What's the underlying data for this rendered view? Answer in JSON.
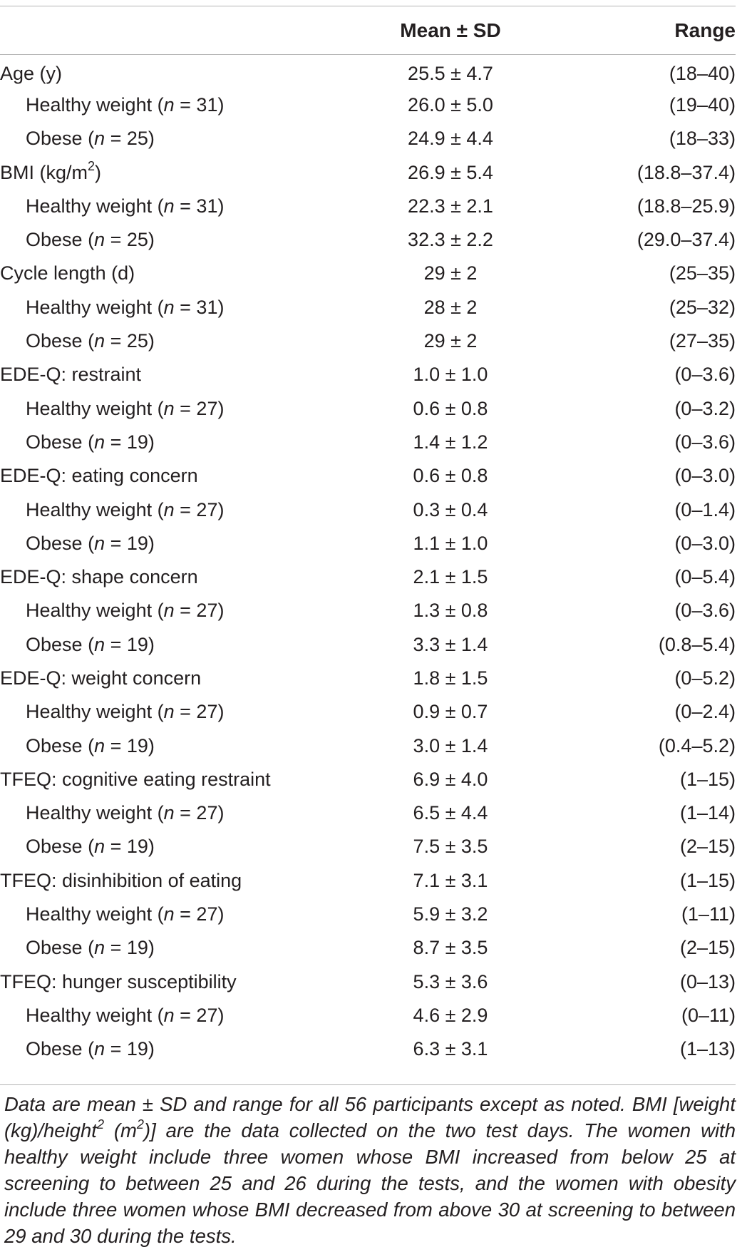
{
  "header": {
    "label": "",
    "mean": "Mean ± SD",
    "range": "Range"
  },
  "rows": [
    {
      "label": "Age (y)",
      "n": "",
      "mean": "25.5 ± 4.7",
      "range": "(18–40)"
    },
    {
      "label": "Healthy weight",
      "n": "31",
      "mean": "26.0 ± 5.0",
      "range": "(19–40)"
    },
    {
      "label": "Obese",
      "n": "25",
      "mean": "24.9 ± 4.4",
      "range": "(18–33)"
    },
    {
      "label": "BMI (kg/m",
      "sup": "2",
      "label_end": ")",
      "n": "",
      "mean": "26.9 ± 5.4",
      "range": "(18.8–37.4)"
    },
    {
      "label": "Healthy weight",
      "n": "31",
      "mean": "22.3 ± 2.1",
      "range": "(18.8–25.9)"
    },
    {
      "label": "Obese",
      "n": "25",
      "mean": "32.3 ± 2.2",
      "range": "(29.0–37.4)"
    },
    {
      "label": "Cycle length (d)",
      "n": "",
      "mean": "29 ± 2",
      "range": "(25–35)"
    },
    {
      "label": "Healthy weight",
      "n": "31",
      "mean": "28 ± 2",
      "range": "(25–32)"
    },
    {
      "label": "Obese",
      "n": "25",
      "mean": "29 ± 2",
      "range": "(27–35)"
    },
    {
      "label": "EDE-Q: restraint",
      "n": "",
      "mean": "1.0 ± 1.0",
      "range": "(0–3.6)"
    },
    {
      "label": "Healthy weight",
      "n": "27",
      "mean": "0.6 ± 0.8",
      "range": "(0–3.2)"
    },
    {
      "label": "Obese",
      "n": "19",
      "mean": "1.4 ± 1.2",
      "range": "(0–3.6)"
    },
    {
      "label": "EDE-Q: eating concern",
      "n": "",
      "mean": "0.6 ± 0.8",
      "range": "(0–3.0)"
    },
    {
      "label": "Healthy weight",
      "n": "27",
      "mean": "0.3 ± 0.4",
      "range": "(0–1.4)"
    },
    {
      "label": "Obese",
      "n": "19",
      "mean": "1.1 ± 1.0",
      "range": "(0–3.0)"
    },
    {
      "label": "EDE-Q: shape concern",
      "n": "",
      "mean": "2.1 ± 1.5",
      "range": "(0–5.4)"
    },
    {
      "label": "Healthy weight",
      "n": "27",
      "mean": "1.3 ± 0.8",
      "range": "(0–3.6)"
    },
    {
      "label": "Obese",
      "n": "19",
      "mean": "3.3 ± 1.4",
      "range": "(0.8–5.4)"
    },
    {
      "label": "EDE-Q: weight concern",
      "n": "",
      "mean": "1.8 ± 1.5",
      "range": "(0–5.2)"
    },
    {
      "label": "Healthy weight",
      "n": "27",
      "mean": "0.9 ± 0.7",
      "range": "(0–2.4)"
    },
    {
      "label": "Obese",
      "n": "19",
      "mean": "3.0 ± 1.4",
      "range": "(0.4–5.2)"
    },
    {
      "label": "TFEQ: cognitive eating restraint",
      "n": "",
      "mean": "6.9 ± 4.0",
      "range": "(1–15)"
    },
    {
      "label": "Healthy weight",
      "n": "27",
      "mean": "6.5 ± 4.4",
      "range": "(1–14)"
    },
    {
      "label": "Obese",
      "n": "19",
      "mean": "7.5 ± 3.5",
      "range": "(2–15)"
    },
    {
      "label": "TFEQ: disinhibition of eating",
      "n": "",
      "mean": "7.1 ± 3.1",
      "range": "(1–15)"
    },
    {
      "label": "Healthy weight",
      "n": "27",
      "mean": "5.9 ± 3.2",
      "range": "(1–11)"
    },
    {
      "label": "Obese",
      "n": "19",
      "mean": "8.7 ± 3.5",
      "range": "(2–15)"
    },
    {
      "label": "TFEQ: hunger susceptibility",
      "n": "",
      "mean": "5.3 ± 3.6",
      "range": "(0–13)"
    },
    {
      "label": "Healthy weight",
      "n": "27",
      "mean": "4.6 ± 2.9",
      "range": "(0–11)"
    },
    {
      "label": "Obese",
      "n": "19",
      "mean": "6.3 ± 3.1",
      "range": "(1–13)"
    }
  ],
  "note": {
    "part1": "Data are mean ± SD and range for all 56 participants except as noted. BMI [weight (kg)/height",
    "sup1": "2",
    "part2": " (m",
    "sup2": "2",
    "part3": ")] are the data collected on the two test days. The women with healthy weight include three women whose BMI increased from below 25 at screening to between 25 and 26 during the tests, and the women with obesity include three women whose BMI decreased from above 30 at screening to between 29 and 30 during the tests."
  }
}
